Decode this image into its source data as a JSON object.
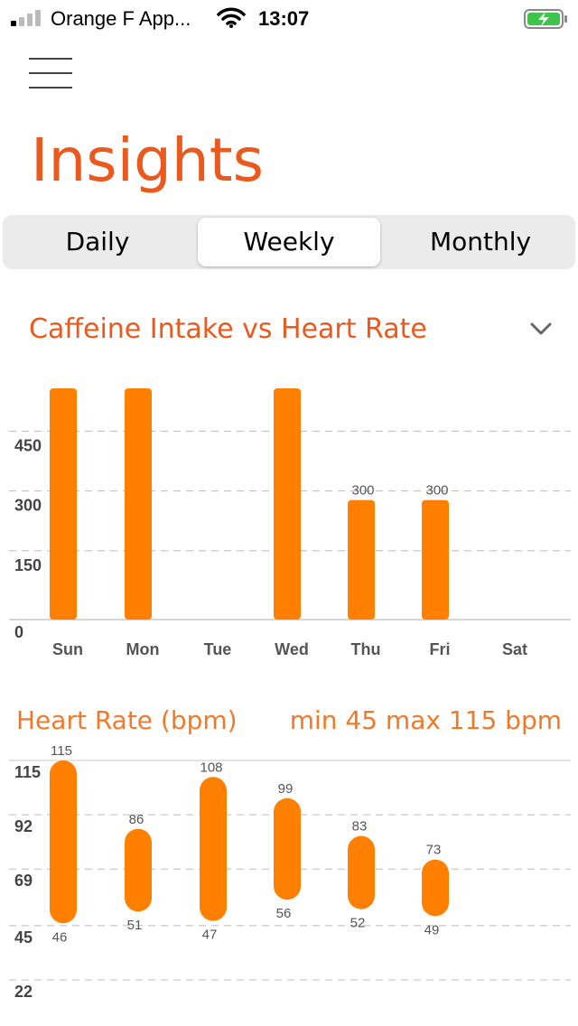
{
  "status_bar": {
    "carrier": "Orange F App...",
    "time": "13:07",
    "icons": [
      "signal-icon",
      "wifi-icon",
      "battery-charging-icon"
    ]
  },
  "page": {
    "title": "Insights",
    "menu_icon": "hamburger-menu-icon"
  },
  "tabs": [
    {
      "label": "Daily",
      "active": false
    },
    {
      "label": "Weekly",
      "active": true
    },
    {
      "label": "Monthly",
      "active": false
    }
  ],
  "caffeine_section": {
    "title": "Caffeine Intake vs Heart Rate",
    "dropdown_icon": "chevron-down-icon"
  },
  "heart_section": {
    "title": "Heart Rate (bpm)",
    "range_text": "min 45 max 115 bpm"
  },
  "colors": {
    "accent": "#ea5a1f",
    "bar": "#ff8000",
    "grid": "#bbbbbb",
    "tab_bg": "#ebebeb"
  },
  "chart_data": [
    {
      "type": "bar",
      "categories": [
        "Sun",
        "Mon",
        "Tue",
        "Wed",
        "Thu",
        "Fri",
        "Sat"
      ],
      "values": [
        580,
        580,
        null,
        580,
        300,
        300,
        null
      ],
      "data_labels": [
        "",
        "",
        "",
        "",
        "300",
        "300",
        ""
      ],
      "yticks": [
        "0",
        "150",
        "300",
        "450"
      ],
      "ylim": [
        0,
        580
      ],
      "grid": true
    },
    {
      "type": "range-bar",
      "categories": [
        "Sun",
        "Mon",
        "Tue",
        "Wed",
        "Thu",
        "Fri",
        "Sat"
      ],
      "min": [
        46,
        51,
        47,
        56,
        52,
        49,
        null
      ],
      "max": [
        115,
        86,
        108,
        99,
        83,
        73,
        null
      ],
      "yticks": [
        "22",
        "45",
        "69",
        "92",
        "115"
      ],
      "ylim": [
        22,
        115
      ],
      "grid": true
    }
  ]
}
